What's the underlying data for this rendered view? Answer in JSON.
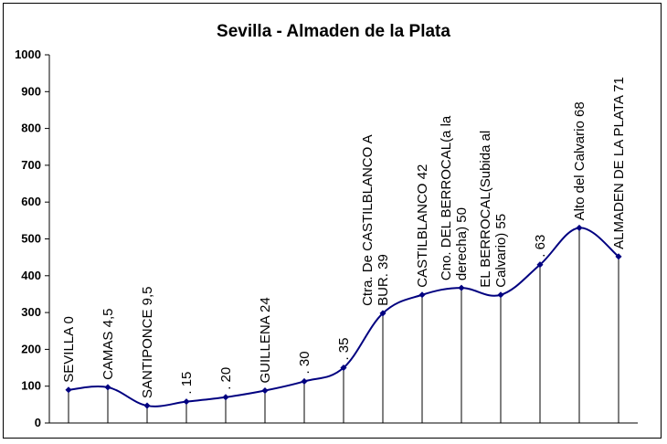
{
  "chart_data": {
    "type": "line",
    "title": "Sevilla - Almaden de la Plata",
    "xlabel": "",
    "ylabel": "",
    "ylim": [
      0,
      1000
    ],
    "yticks": [
      "0",
      "100",
      "200",
      "300",
      "400",
      "500",
      "600",
      "700",
      "800",
      "900",
      "1000"
    ],
    "grid": false,
    "legend": "none",
    "line_color": "#000080",
    "points": [
      {
        "label": [
          "SEVILLA 0"
        ],
        "y": 90
      },
      {
        "label": [
          "CAMAS 4,5"
        ],
        "y": 97
      },
      {
        "label": [
          "SANTIPONCE 9,5"
        ],
        "y": 47
      },
      {
        "label": [
          ". 15"
        ],
        "y": 58
      },
      {
        "label": [
          ". 20"
        ],
        "y": 70
      },
      {
        "label": [
          "GUILLENA 24"
        ],
        "y": 88
      },
      {
        "label": [
          ". 30"
        ],
        "y": 113
      },
      {
        "label": [
          ". 35"
        ],
        "y": 150
      },
      {
        "label": [
          "Ctra. De CASTILBLANCO A",
          "BUR. 39"
        ],
        "y": 298
      },
      {
        "label": [
          "CASTILBLANCO 42"
        ],
        "y": 348
      },
      {
        "label": [
          "Cno. DEL BERROCAL(a la",
          "derecha) 50"
        ],
        "y": 367
      },
      {
        "label": [
          "EL BERROCAL(Subida al",
          "Calvario) 55"
        ],
        "y": 348
      },
      {
        "label": [
          ". 63"
        ],
        "y": 430
      },
      {
        "label": [
          "Alto del Calvario 68"
        ],
        "y": 530
      },
      {
        "label": [
          "ALMADEN DE LA PLATA 71"
        ],
        "y": 452
      }
    ]
  }
}
